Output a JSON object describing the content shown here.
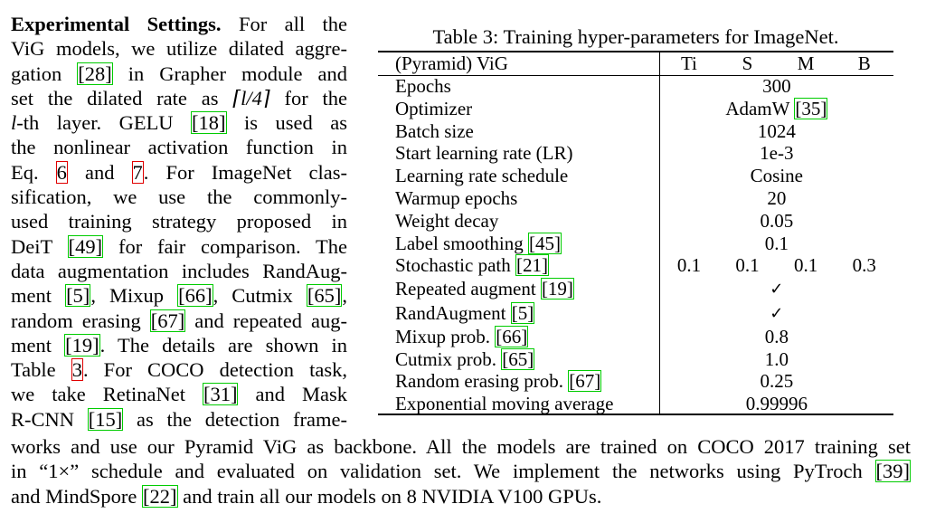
{
  "left_lines": [
    [
      "Experimental Settings.",
      "  For all the"
    ],
    [
      "ViG models, we utilize dilated aggre-"
    ],
    [
      "gation ",
      "[28]",
      " in Grapher module and"
    ],
    [
      "set the dilated rate as ",
      "⌈l/4⌉",
      " for the"
    ],
    [
      "l",
      "-th layer.  GELU ",
      "[18]",
      " is used as"
    ],
    [
      "the nonlinear activation function in"
    ],
    [
      "Eq. ",
      "6",
      " and ",
      "7",
      ".  For ImageNet clas-"
    ],
    [
      "sification,  we  use  the  commonly-"
    ],
    [
      "used  training  strategy  proposed  in"
    ],
    [
      "DeiT ",
      "[49]",
      " for fair comparison.  The"
    ],
    [
      "data augmentation includes RandAug-"
    ],
    [
      "ment ",
      "[5]",
      ", Mixup ",
      "[66]",
      ", Cutmix ",
      "[65]",
      ","
    ],
    [
      "random erasing ",
      "[67]",
      " and repeated aug-"
    ],
    [
      "ment ",
      "[19]",
      ".  The details are shown in"
    ],
    [
      "Table ",
      "3",
      ".  For COCO detection task,"
    ],
    [
      "we take RetinaNet ",
      "[31]",
      " and Mask"
    ],
    [
      "R-CNN ",
      "[15]",
      " as the detection frame-"
    ]
  ],
  "bottom_lines": [
    [
      "works and use our Pyramid ViG as backbone. All the models are trained on COCO 2017 training set"
    ],
    [
      "in “1×” schedule and evaluated on validation set. We implement the networks using PyTroch ",
      "[39]"
    ],
    [
      "and MindSpore ",
      "[22]",
      " and train all our models on 8 NVIDIA V100 GPUs."
    ]
  ],
  "table": {
    "caption": "Table 3: Training hyper-parameters for ImageNet.",
    "header": {
      "label": "(Pyramid) ViG",
      "cols": [
        "Ti",
        "S",
        "M",
        "B"
      ]
    },
    "rows": [
      {
        "label": "Epochs",
        "value": "300"
      },
      {
        "label": "Optimizer",
        "value": "AdamW ",
        "ref": "[35]"
      },
      {
        "label": "Batch size",
        "value": "1024"
      },
      {
        "label": "Start learning rate (LR)",
        "value": "1e-3"
      },
      {
        "label": "Learning rate schedule",
        "value": "Cosine"
      },
      {
        "label": "Warmup epochs",
        "value": "20"
      },
      {
        "label": "Weight decay",
        "value": "0.05"
      },
      {
        "label": "Label smoothing ",
        "label_ref": "[45]",
        "value": "0.1"
      },
      {
        "label": "Stochastic path ",
        "label_ref": "[21]",
        "values": [
          "0.1",
          "0.1",
          "0.1",
          "0.3"
        ]
      },
      {
        "label": "Repeated augment ",
        "label_ref": "[19]",
        "value": "✓"
      },
      {
        "label": "RandAugment ",
        "label_ref": "[5]",
        "value": "✓"
      },
      {
        "label": "Mixup prob. ",
        "label_ref": "[66]",
        "value": "0.8"
      },
      {
        "label": "Cutmix prob. ",
        "label_ref": "[65]",
        "value": "1.0"
      },
      {
        "label": "Random erasing prob. ",
        "label_ref": "[67]",
        "value": "0.25"
      },
      {
        "label": "Exponential moving average",
        "value": "0.99996"
      }
    ]
  }
}
